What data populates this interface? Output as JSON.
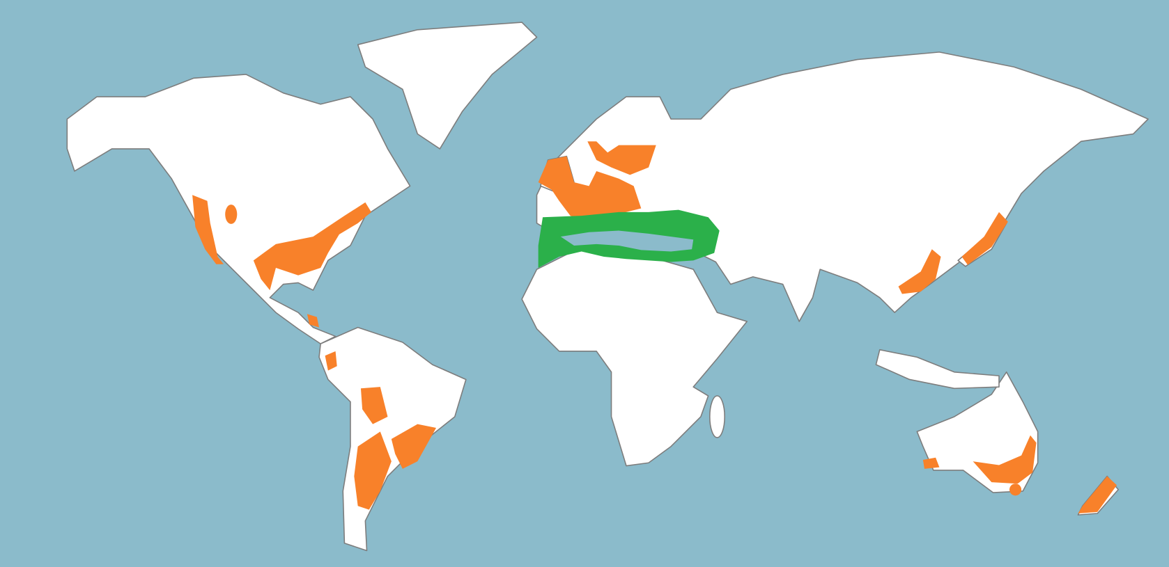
{
  "map": {
    "colors": {
      "ocean": "#8BBBCB",
      "land": "#FFFFFF",
      "border": "#7D7D7D",
      "orange_region": "#F8812A",
      "green_region": "#2BB04A"
    }
  }
}
